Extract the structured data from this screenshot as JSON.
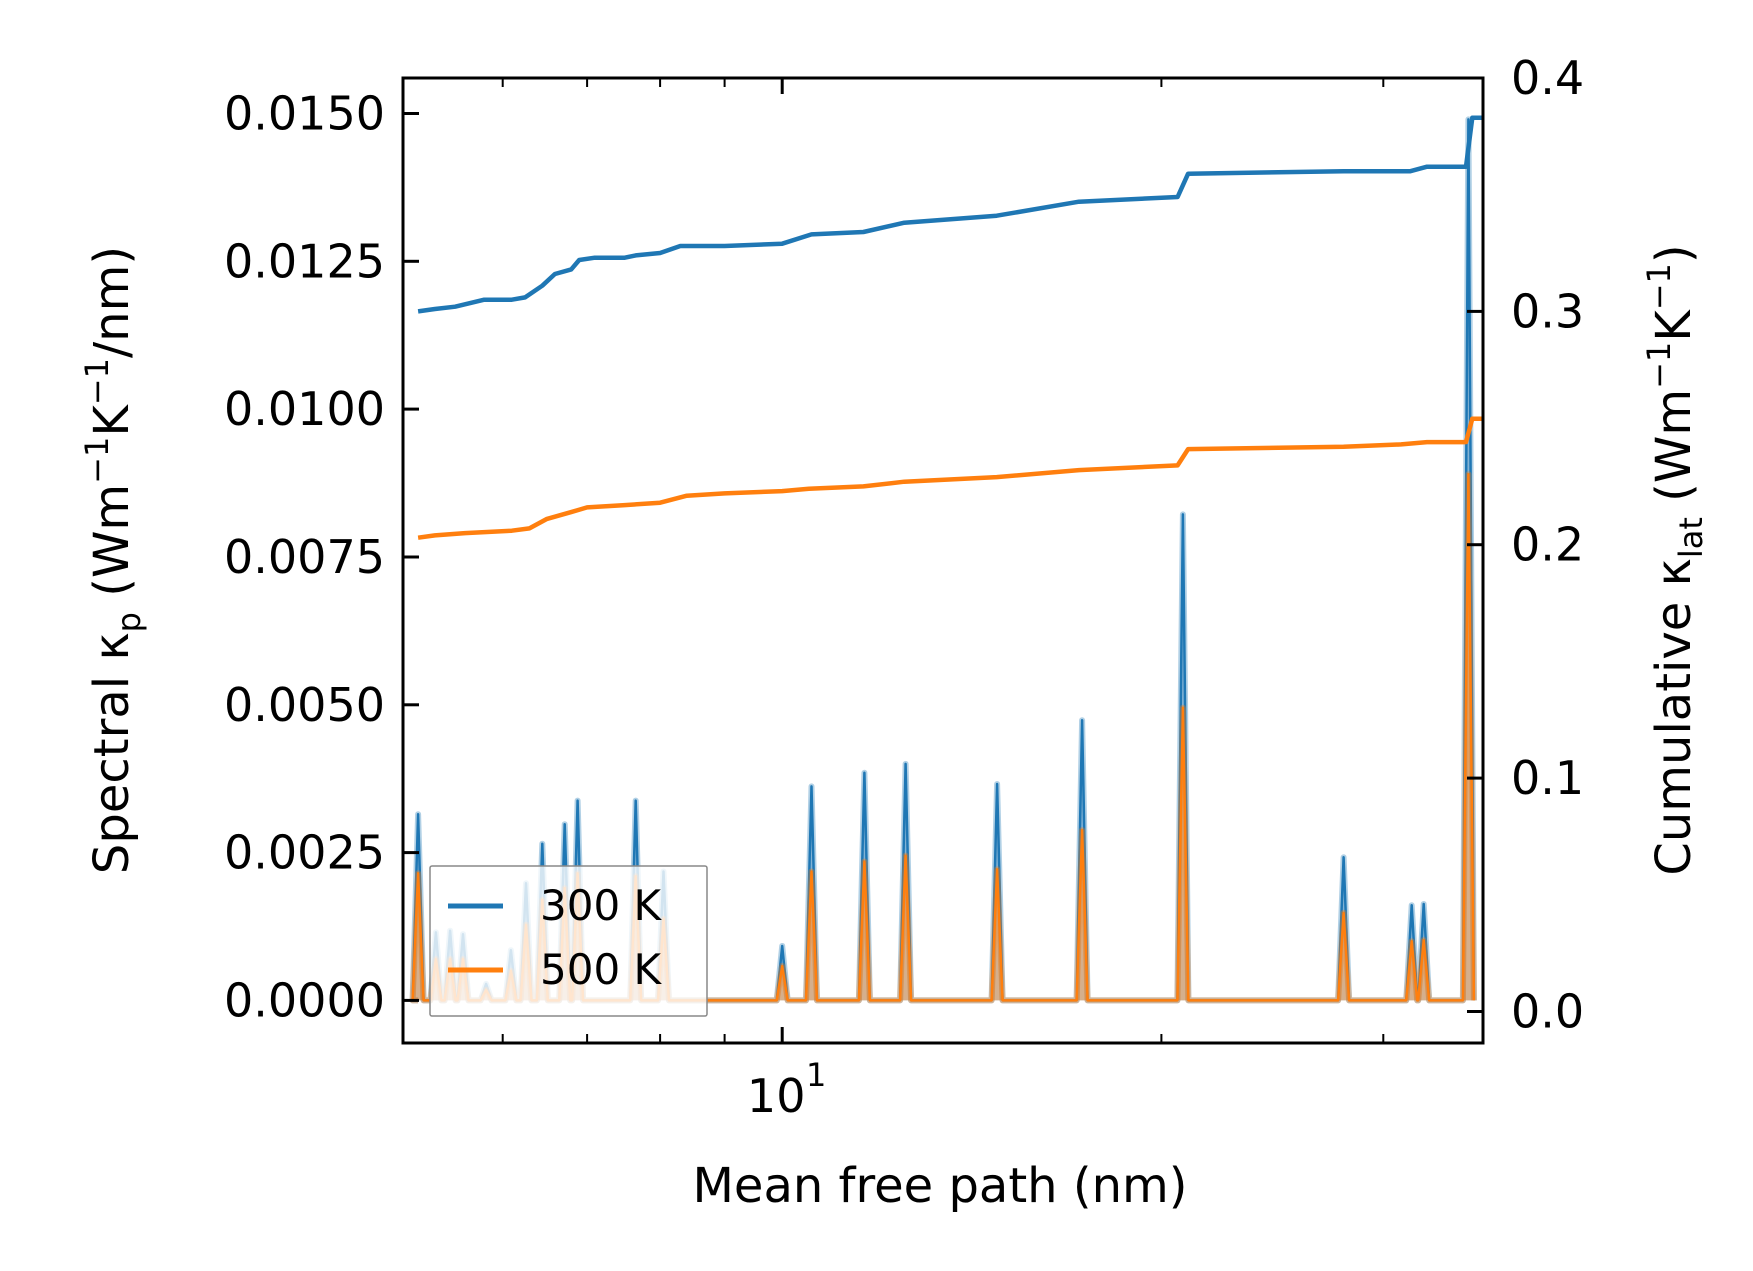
{
  "chart_data": {
    "type": "line",
    "xscale": "log",
    "xlabel": "Mean free path (nm)",
    "ylabel_left": "Spectral κp (Wm−1K−1/nm)",
    "ylabel_right": "Cumulative κlat (Wm−1K−1)",
    "xlim": [
      5.0,
      36.0
    ],
    "ylim_left": [
      -0.00072,
      0.0156
    ],
    "ylim_right": [
      -0.0135,
      0.4
    ],
    "left_ticks": [
      "0.0000",
      "0.0025",
      "0.0050",
      "0.0075",
      "0.0100",
      "0.0125",
      "0.0150"
    ],
    "right_ticks": [
      "0.0",
      "0.1",
      "0.2",
      "0.3",
      "0.4"
    ],
    "x_tick_major": "10",
    "x_tick_major_exp": "1",
    "legend": {
      "position": "lower-left",
      "entries": [
        "300 K",
        "500 K"
      ]
    },
    "colors": {
      "300K": "#1f77b4",
      "500K": "#ff7f0e"
    },
    "series": [
      {
        "name": "300 K",
        "spectral_peaks": [
          [
            5.14,
            0.00315
          ],
          [
            5.31,
            0.00115
          ],
          [
            5.45,
            0.00118
          ],
          [
            5.58,
            0.00112
          ],
          [
            5.82,
            0.00028
          ],
          [
            6.09,
            0.00085
          ],
          [
            6.26,
            0.00198
          ],
          [
            6.45,
            0.00265
          ],
          [
            6.72,
            0.00298
          ],
          [
            6.88,
            0.00338
          ],
          [
            7.65,
            0.00338
          ],
          [
            8.05,
            0.00218
          ],
          [
            10.0,
            0.00092
          ],
          [
            10.55,
            0.00362
          ],
          [
            11.62,
            0.00385
          ],
          [
            12.53,
            0.004
          ],
          [
            14.81,
            0.00366
          ],
          [
            17.3,
            0.00474
          ],
          [
            20.8,
            0.00822
          ],
          [
            27.9,
            0.00242
          ],
          [
            31.6,
            0.00161
          ],
          [
            32.3,
            0.00163
          ],
          [
            35.05,
            0.0149
          ]
        ],
        "cumulative": [
          [
            5.14,
            0.3
          ],
          [
            5.3,
            0.301
          ],
          [
            5.5,
            0.302
          ],
          [
            5.8,
            0.305
          ],
          [
            6.1,
            0.305
          ],
          [
            6.25,
            0.306
          ],
          [
            6.45,
            0.311
          ],
          [
            6.6,
            0.316
          ],
          [
            6.8,
            0.318
          ],
          [
            6.9,
            0.322
          ],
          [
            7.1,
            0.323
          ],
          [
            7.3,
            0.323
          ],
          [
            7.5,
            0.323
          ],
          [
            7.65,
            0.324
          ],
          [
            8.0,
            0.325
          ],
          [
            8.3,
            0.328
          ],
          [
            9.0,
            0.328
          ],
          [
            10.0,
            0.329
          ],
          [
            10.55,
            0.333
          ],
          [
            11.6,
            0.334
          ],
          [
            12.5,
            0.338
          ],
          [
            14.8,
            0.341
          ],
          [
            17.2,
            0.347
          ],
          [
            20.6,
            0.349
          ],
          [
            21.0,
            0.359
          ],
          [
            27.9,
            0.36
          ],
          [
            30.0,
            0.36
          ],
          [
            31.5,
            0.36
          ],
          [
            32.5,
            0.362
          ],
          [
            34.9,
            0.362
          ],
          [
            35.3,
            0.383
          ],
          [
            36.0,
            0.383
          ]
        ]
      },
      {
        "name": "500 K",
        "spectral_peaks": [
          [
            5.14,
            0.00215
          ],
          [
            5.31,
            0.0007
          ],
          [
            5.45,
            0.0007
          ],
          [
            5.58,
            0.0007
          ],
          [
            5.82,
            0.00018
          ],
          [
            6.09,
            0.0005
          ],
          [
            6.26,
            0.00128
          ],
          [
            6.45,
            0.0017
          ],
          [
            6.72,
            0.0019
          ],
          [
            6.88,
            0.00215
          ],
          [
            7.65,
            0.0021
          ],
          [
            8.05,
            0.00138
          ],
          [
            10.0,
            0.00058
          ],
          [
            10.55,
            0.00218
          ],
          [
            11.62,
            0.00235
          ],
          [
            12.53,
            0.00245
          ],
          [
            14.81,
            0.00222
          ],
          [
            17.3,
            0.00288
          ],
          [
            20.8,
            0.00495
          ],
          [
            27.9,
            0.00148
          ],
          [
            31.6,
            0.001
          ],
          [
            32.3,
            0.00102
          ],
          [
            35.05,
            0.0089
          ]
        ],
        "cumulative": [
          [
            5.14,
            0.203
          ],
          [
            5.3,
            0.204
          ],
          [
            5.6,
            0.205
          ],
          [
            6.1,
            0.206
          ],
          [
            6.3,
            0.207
          ],
          [
            6.5,
            0.211
          ],
          [
            6.8,
            0.214
          ],
          [
            7.0,
            0.216
          ],
          [
            7.5,
            0.217
          ],
          [
            8.0,
            0.218
          ],
          [
            8.4,
            0.221
          ],
          [
            9.0,
            0.222
          ],
          [
            10.0,
            0.223
          ],
          [
            10.5,
            0.224
          ],
          [
            11.6,
            0.225
          ],
          [
            12.5,
            0.227
          ],
          [
            14.8,
            0.229
          ],
          [
            17.2,
            0.232
          ],
          [
            20.6,
            0.234
          ],
          [
            21.0,
            0.241
          ],
          [
            27.9,
            0.242
          ],
          [
            31.0,
            0.243
          ],
          [
            32.5,
            0.244
          ],
          [
            34.9,
            0.244
          ],
          [
            35.3,
            0.254
          ],
          [
            36.0,
            0.254
          ]
        ]
      }
    ]
  }
}
